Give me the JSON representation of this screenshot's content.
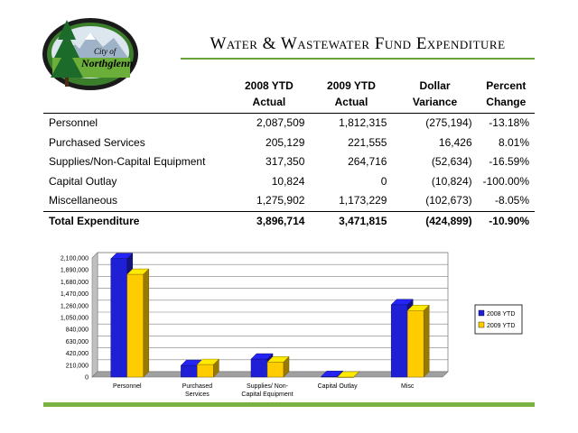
{
  "header": {
    "title": "Water & Wastewater Fund Expenditure",
    "logo_text_top": "City of",
    "logo_text_bottom": "Northglenn"
  },
  "table": {
    "columns": [
      {
        "line1": "",
        "line2": ""
      },
      {
        "line1": "2008 YTD",
        "line2": "Actual"
      },
      {
        "line1": "2009 YTD",
        "line2": "Actual"
      },
      {
        "line1": "Dollar",
        "line2": "Variance"
      },
      {
        "line1": "Percent",
        "line2": "Change"
      }
    ],
    "rows": [
      {
        "label": "Personnel",
        "y2008": "2,087,509",
        "y2009": "1,812,315",
        "variance": "(275,194)",
        "change": "-13.18%"
      },
      {
        "label": "Purchased Services",
        "y2008": "205,129",
        "y2009": "221,555",
        "variance": "16,426",
        "change": "8.01%"
      },
      {
        "label": "Supplies/Non-Capital Equipment",
        "y2008": "317,350",
        "y2009": "264,716",
        "variance": "(52,634)",
        "change": "-16.59%"
      },
      {
        "label": "Capital Outlay",
        "y2008": "10,824",
        "y2009": "0",
        "variance": "(10,824)",
        "change": "-100.00%"
      },
      {
        "label": "Miscellaneous",
        "y2008": "1,275,902",
        "y2009": "1,173,229",
        "variance": "(102,673)",
        "change": "-8.05%"
      }
    ],
    "total": {
      "label": "Total Expenditure",
      "y2008": "3,896,714",
      "y2009": "3,471,815",
      "variance": "(424,899)",
      "change": "-10.90%"
    }
  },
  "chart_data": {
    "type": "bar",
    "categories": [
      [
        "Personnel"
      ],
      [
        "Purchased",
        "Services"
      ],
      [
        "Supplies/ Non-",
        "Capital Equipment"
      ],
      [
        "Capital Outlay"
      ],
      [
        "Misc"
      ]
    ],
    "series": [
      {
        "name": "2008 YTD",
        "values": [
          2087509,
          205129,
          317350,
          10824,
          1275902
        ],
        "color": "#1f1fd6"
      },
      {
        "name": "2009 YTD",
        "values": [
          1812315,
          221555,
          264716,
          0,
          1173229
        ],
        "color": "#ffcc00"
      }
    ],
    "yticks": [
      "0",
      "210,000",
      "420,000",
      "630,000",
      "840,000",
      "1,050,000",
      "1,260,000",
      "1,470,000",
      "1,680,000",
      "1,890,000",
      "2,100,000"
    ],
    "ylim": [
      0,
      2100000
    ],
    "grid": true,
    "legend": "right"
  }
}
